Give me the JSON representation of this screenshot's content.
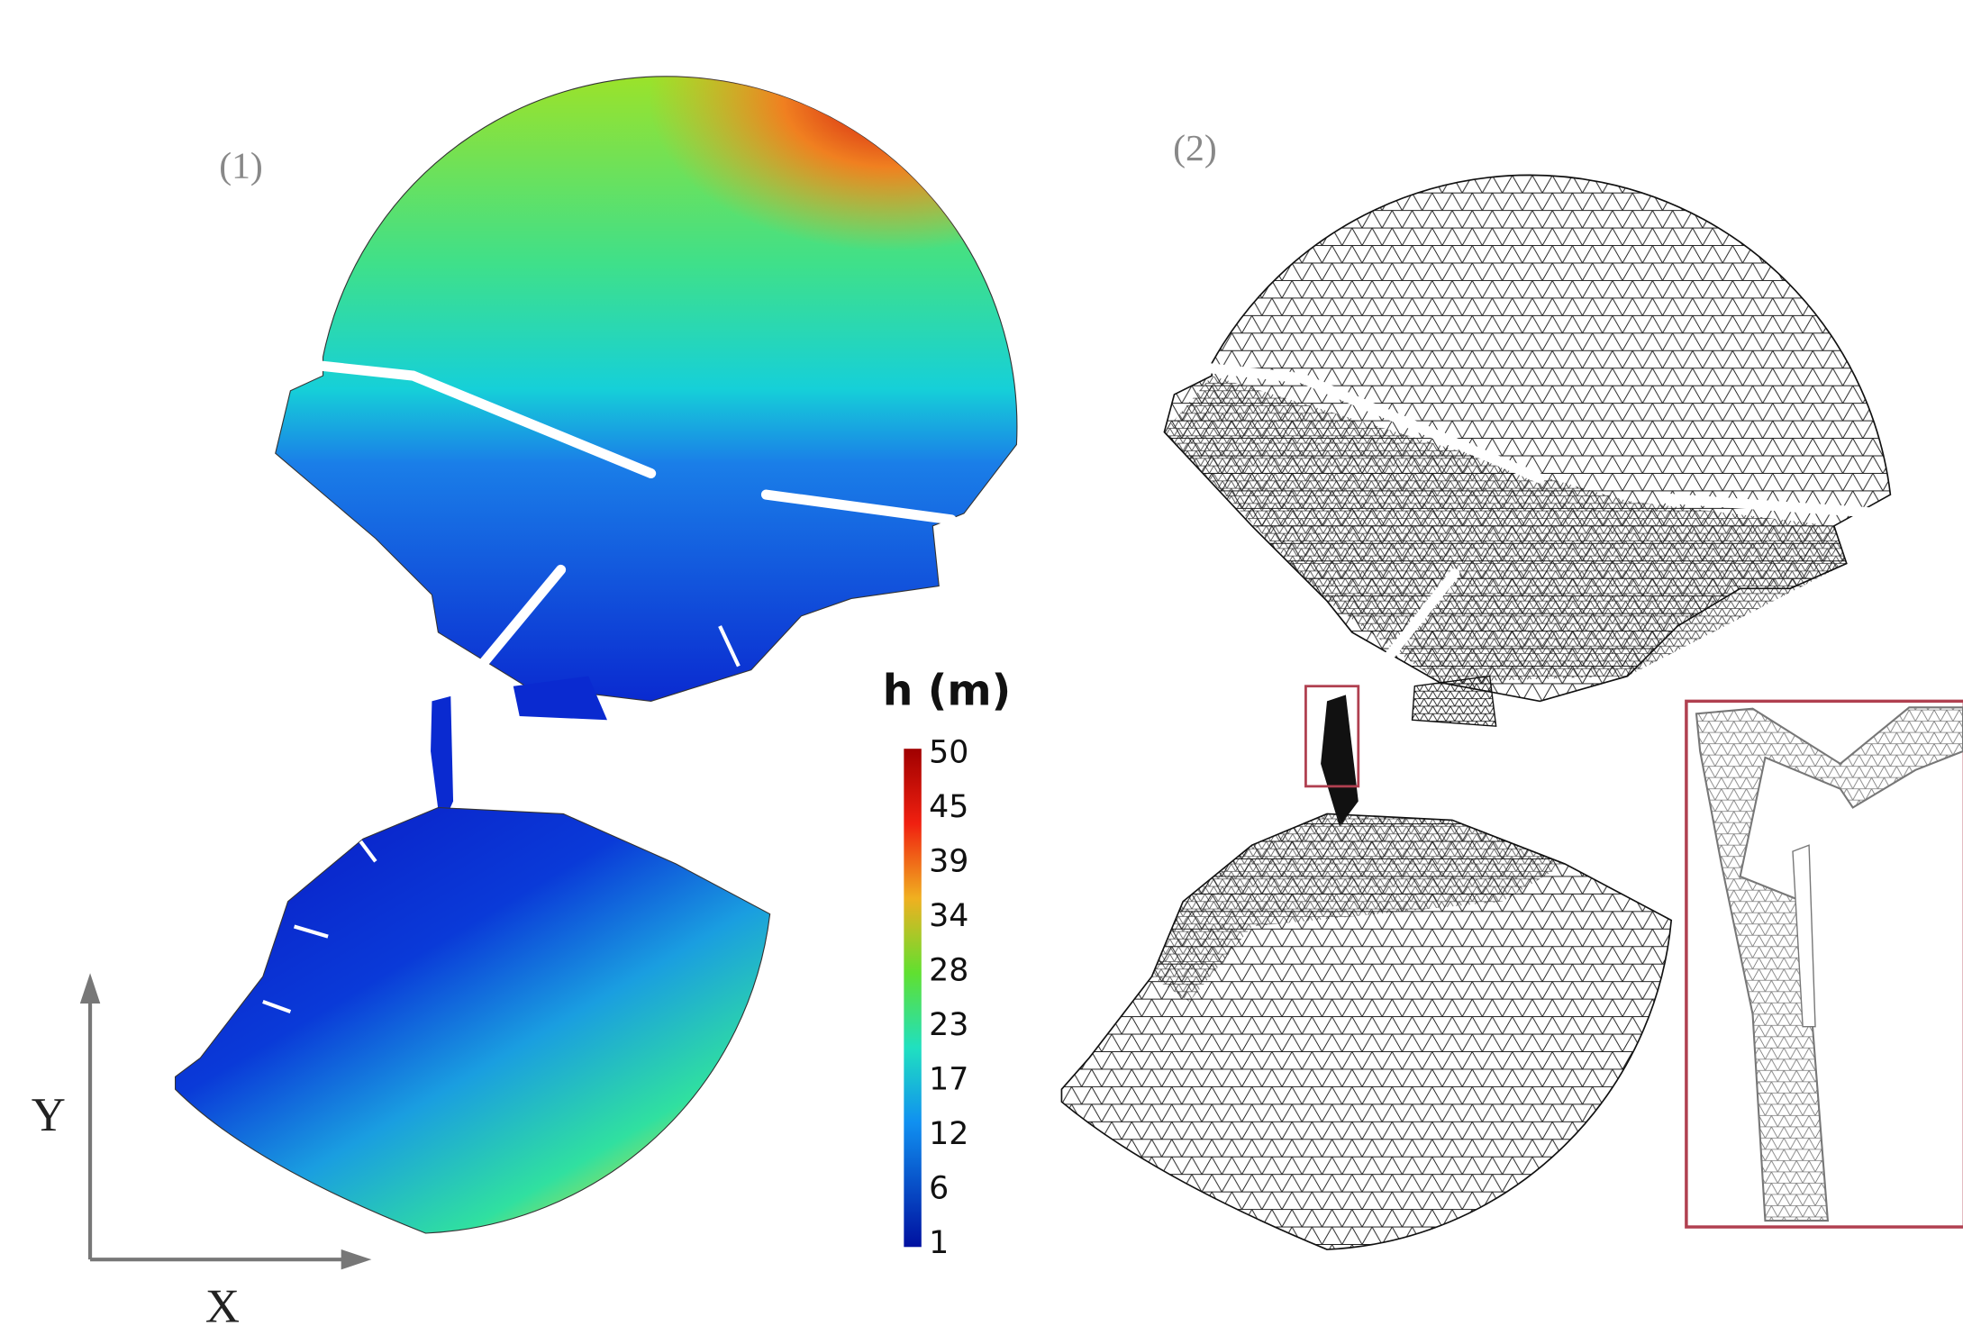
{
  "panels": [
    {
      "label": "(1)"
    },
    {
      "label": "(2)"
    }
  ],
  "colorbar": {
    "title": "h (m)",
    "ticks": [
      50,
      45,
      39,
      34,
      28,
      23,
      17,
      12,
      6,
      1
    ]
  },
  "axes": {
    "y_label": "Y",
    "x_label": "X"
  }
}
